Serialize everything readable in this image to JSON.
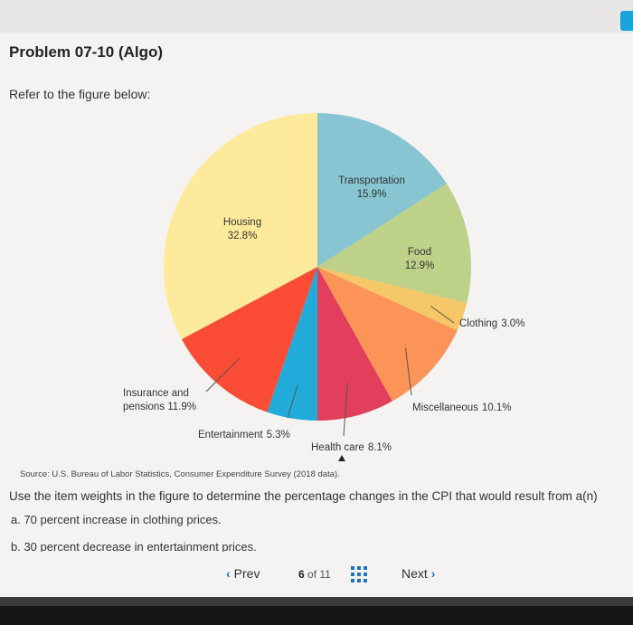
{
  "page": {
    "title": "Problem 07-10 (Algo)",
    "intro": "Refer to the figure below:",
    "source": "Source: U.S. Bureau of Labor Statistics, Consumer Expenditure Survey (2018 data).",
    "question": "Use the item weights in the figure to determine the percentage changes in the CPI that would result from a(n)",
    "part_a": "a. 70 percent increase in clothing prices.",
    "part_b": "b. 30 percent decrease in entertainment prices."
  },
  "nav": {
    "prev_label": "Prev",
    "current_page": "6",
    "of_label": "of",
    "total_pages": "11",
    "next_label": "Next",
    "grid_icon": "grid-icon"
  },
  "colors": {
    "nav_accent": "#1a75c4",
    "corner_button": "#1aa3d9"
  },
  "chart_data": {
    "type": "pie",
    "title": "",
    "slices": [
      {
        "label": "Transportation",
        "value": 15.9,
        "value_label": "15.9%",
        "color": "#86c5d1"
      },
      {
        "label": "Food",
        "value": 12.9,
        "value_label": "12.9%",
        "color": "#bdd189"
      },
      {
        "label": "Clothing",
        "value": 3.0,
        "value_label": "3.0%",
        "color": "#f5c766"
      },
      {
        "label": "Miscellaneous",
        "value": 10.1,
        "value_label": "10.1%",
        "color": "#fc9458"
      },
      {
        "label": "Health care",
        "value": 8.1,
        "value_label": "8.1%",
        "color": "#e33e5c"
      },
      {
        "label": "Entertainment",
        "value": 5.3,
        "value_label": "5.3%",
        "color": "#20abd8"
      },
      {
        "label": "Insurance and pensions",
        "value": 11.9,
        "value_label": "11.9%",
        "color": "#fb4c35"
      },
      {
        "label": "Housing",
        "value": 32.8,
        "value_label": "32.8%",
        "color": "#fdeb9b"
      }
    ]
  }
}
